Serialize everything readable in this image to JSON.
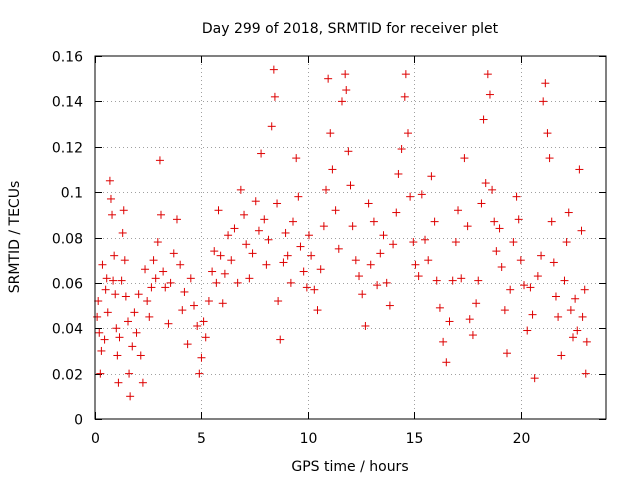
{
  "chart_data": {
    "type": "scatter",
    "title": "Day 299 of 2018, SRMTID for receiver plet",
    "xlabel": "GPS time / hours",
    "ylabel": "SRMTID / TECUs",
    "xlim": [
      0,
      24
    ],
    "ylim": [
      0,
      0.16
    ],
    "x_ticks": [
      0,
      5,
      10,
      15,
      20
    ],
    "x_tick_labels": [
      "0",
      "5",
      "10",
      "15",
      "20"
    ],
    "y_ticks": [
      0,
      0.02,
      0.04,
      0.06,
      0.08,
      0.1,
      0.12,
      0.14,
      0.16
    ],
    "y_tick_labels": [
      "0",
      "0.02",
      "0.04",
      "0.06",
      "0.08",
      "0.1",
      "0.12",
      "0.14",
      "0.16"
    ],
    "grid": true,
    "marker": "+",
    "marker_color": "#dd0000",
    "series": [
      {
        "name": "SRMTID",
        "points": [
          [
            0.1,
            0.045
          ],
          [
            0.15,
            0.052
          ],
          [
            0.2,
            0.038
          ],
          [
            0.25,
            0.02
          ],
          [
            0.3,
            0.03
          ],
          [
            0.35,
            0.068
          ],
          [
            0.45,
            0.035
          ],
          [
            0.5,
            0.057
          ],
          [
            0.55,
            0.062
          ],
          [
            0.6,
            0.047
          ],
          [
            0.7,
            0.105
          ],
          [
            0.75,
            0.097
          ],
          [
            0.8,
            0.09
          ],
          [
            0.85,
            0.061
          ],
          [
            0.9,
            0.072
          ],
          [
            0.95,
            0.055
          ],
          [
            1.0,
            0.04
          ],
          [
            1.05,
            0.028
          ],
          [
            1.1,
            0.016
          ],
          [
            1.15,
            0.036
          ],
          [
            1.25,
            0.061
          ],
          [
            1.3,
            0.082
          ],
          [
            1.35,
            0.092
          ],
          [
            1.4,
            0.07
          ],
          [
            1.45,
            0.054
          ],
          [
            1.55,
            0.043
          ],
          [
            1.6,
            0.02
          ],
          [
            1.65,
            0.01
          ],
          [
            1.75,
            0.032
          ],
          [
            1.85,
            0.047
          ],
          [
            1.95,
            0.038
          ],
          [
            2.05,
            0.055
          ],
          [
            2.15,
            0.028
          ],
          [
            2.25,
            0.016
          ],
          [
            2.35,
            0.066
          ],
          [
            2.45,
            0.052
          ],
          [
            2.55,
            0.045
          ],
          [
            2.65,
            0.058
          ],
          [
            2.75,
            0.07
          ],
          [
            2.85,
            0.062
          ],
          [
            2.95,
            0.078
          ],
          [
            3.05,
            0.114
          ],
          [
            3.1,
            0.09
          ],
          [
            3.2,
            0.065
          ],
          [
            3.3,
            0.058
          ],
          [
            3.45,
            0.042
          ],
          [
            3.55,
            0.06
          ],
          [
            3.7,
            0.073
          ],
          [
            3.85,
            0.088
          ],
          [
            4.0,
            0.068
          ],
          [
            4.1,
            0.048
          ],
          [
            4.2,
            0.056
          ],
          [
            4.35,
            0.033
          ],
          [
            4.5,
            0.062
          ],
          [
            4.65,
            0.05
          ],
          [
            4.8,
            0.041
          ],
          [
            4.9,
            0.02
          ],
          [
            5.0,
            0.027
          ],
          [
            5.1,
            0.043
          ],
          [
            5.2,
            0.036
          ],
          [
            5.35,
            0.052
          ],
          [
            5.5,
            0.065
          ],
          [
            5.6,
            0.074
          ],
          [
            5.7,
            0.06
          ],
          [
            5.8,
            0.092
          ],
          [
            5.9,
            0.072
          ],
          [
            6.0,
            0.051
          ],
          [
            6.1,
            0.064
          ],
          [
            6.25,
            0.081
          ],
          [
            6.4,
            0.07
          ],
          [
            6.55,
            0.084
          ],
          [
            6.7,
            0.06
          ],
          [
            6.85,
            0.101
          ],
          [
            7.0,
            0.09
          ],
          [
            7.1,
            0.077
          ],
          [
            7.25,
            0.062
          ],
          [
            7.4,
            0.073
          ],
          [
            7.55,
            0.096
          ],
          [
            7.7,
            0.083
          ],
          [
            7.8,
            0.117
          ],
          [
            7.95,
            0.088
          ],
          [
            8.05,
            0.068
          ],
          [
            8.15,
            0.079
          ],
          [
            8.3,
            0.129
          ],
          [
            8.4,
            0.154
          ],
          [
            8.45,
            0.142
          ],
          [
            8.55,
            0.095
          ],
          [
            8.6,
            0.052
          ],
          [
            8.7,
            0.035
          ],
          [
            8.85,
            0.069
          ],
          [
            8.95,
            0.082
          ],
          [
            9.05,
            0.072
          ],
          [
            9.2,
            0.06
          ],
          [
            9.3,
            0.087
          ],
          [
            9.45,
            0.115
          ],
          [
            9.55,
            0.098
          ],
          [
            9.65,
            0.076
          ],
          [
            9.8,
            0.065
          ],
          [
            9.95,
            0.058
          ],
          [
            10.05,
            0.081
          ],
          [
            10.15,
            0.072
          ],
          [
            10.3,
            0.057
          ],
          [
            10.45,
            0.048
          ],
          [
            10.6,
            0.066
          ],
          [
            10.75,
            0.085
          ],
          [
            10.85,
            0.101
          ],
          [
            10.95,
            0.15
          ],
          [
            11.05,
            0.126
          ],
          [
            11.15,
            0.11
          ],
          [
            11.3,
            0.092
          ],
          [
            11.45,
            0.075
          ],
          [
            11.6,
            0.14
          ],
          [
            11.75,
            0.152
          ],
          [
            11.8,
            0.145
          ],
          [
            11.9,
            0.118
          ],
          [
            12.0,
            0.103
          ],
          [
            12.1,
            0.085
          ],
          [
            12.25,
            0.07
          ],
          [
            12.4,
            0.063
          ],
          [
            12.55,
            0.055
          ],
          [
            12.7,
            0.041
          ],
          [
            12.85,
            0.095
          ],
          [
            12.95,
            0.068
          ],
          [
            13.1,
            0.087
          ],
          [
            13.25,
            0.059
          ],
          [
            13.4,
            0.073
          ],
          [
            13.55,
            0.081
          ],
          [
            13.7,
            0.06
          ],
          [
            13.85,
            0.05
          ],
          [
            14.0,
            0.077
          ],
          [
            14.15,
            0.091
          ],
          [
            14.25,
            0.108
          ],
          [
            14.4,
            0.119
          ],
          [
            14.55,
            0.142
          ],
          [
            14.6,
            0.152
          ],
          [
            14.7,
            0.126
          ],
          [
            14.8,
            0.098
          ],
          [
            14.95,
            0.078
          ],
          [
            15.05,
            0.068
          ],
          [
            15.2,
            0.063
          ],
          [
            15.35,
            0.099
          ],
          [
            15.5,
            0.079
          ],
          [
            15.65,
            0.07
          ],
          [
            15.8,
            0.107
          ],
          [
            15.95,
            0.087
          ],
          [
            16.05,
            0.061
          ],
          [
            16.2,
            0.049
          ],
          [
            16.35,
            0.034
          ],
          [
            16.5,
            0.025
          ],
          [
            16.65,
            0.043
          ],
          [
            16.8,
            0.061
          ],
          [
            16.95,
            0.078
          ],
          [
            17.05,
            0.092
          ],
          [
            17.2,
            0.062
          ],
          [
            17.35,
            0.115
          ],
          [
            17.5,
            0.085
          ],
          [
            17.6,
            0.044
          ],
          [
            17.75,
            0.037
          ],
          [
            17.9,
            0.051
          ],
          [
            18.0,
            0.061
          ],
          [
            18.15,
            0.095
          ],
          [
            18.25,
            0.132
          ],
          [
            18.35,
            0.104
          ],
          [
            18.45,
            0.152
          ],
          [
            18.55,
            0.143
          ],
          [
            18.65,
            0.101
          ],
          [
            18.75,
            0.087
          ],
          [
            18.85,
            0.074
          ],
          [
            19.0,
            0.084
          ],
          [
            19.1,
            0.067
          ],
          [
            19.25,
            0.048
          ],
          [
            19.35,
            0.029
          ],
          [
            19.5,
            0.057
          ],
          [
            19.65,
            0.078
          ],
          [
            19.8,
            0.098
          ],
          [
            19.9,
            0.088
          ],
          [
            20.0,
            0.07
          ],
          [
            20.15,
            0.059
          ],
          [
            20.3,
            0.039
          ],
          [
            20.45,
            0.058
          ],
          [
            20.55,
            0.046
          ],
          [
            20.65,
            0.018
          ],
          [
            20.8,
            0.063
          ],
          [
            20.95,
            0.072
          ],
          [
            21.05,
            0.14
          ],
          [
            21.15,
            0.148
          ],
          [
            21.25,
            0.126
          ],
          [
            21.35,
            0.115
          ],
          [
            21.45,
            0.087
          ],
          [
            21.55,
            0.069
          ],
          [
            21.65,
            0.054
          ],
          [
            21.75,
            0.045
          ],
          [
            21.9,
            0.028
          ],
          [
            22.05,
            0.061
          ],
          [
            22.15,
            0.078
          ],
          [
            22.25,
            0.091
          ],
          [
            22.35,
            0.048
          ],
          [
            22.45,
            0.036
          ],
          [
            22.55,
            0.053
          ],
          [
            22.65,
            0.039
          ],
          [
            22.75,
            0.11
          ],
          [
            22.85,
            0.083
          ],
          [
            22.9,
            0.045
          ],
          [
            23.0,
            0.057
          ],
          [
            23.05,
            0.02
          ],
          [
            23.1,
            0.034
          ]
        ]
      }
    ]
  }
}
